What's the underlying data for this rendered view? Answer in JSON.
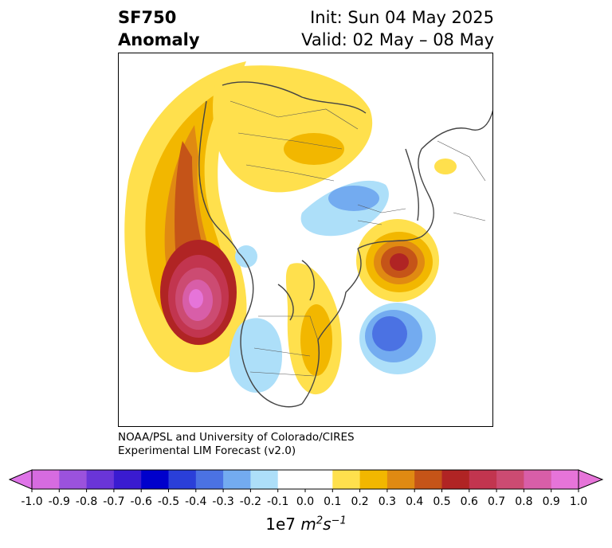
{
  "header": {
    "title_line1": "SF750",
    "title_line2": "Anomaly",
    "init_text": "Init: Sun 04 May 2025",
    "valid_text": "Valid: 02 May – 08 May"
  },
  "credit": {
    "line1": "NOAA/PSL and University of Colorado/CIRES",
    "line2": "Experimental LIM Forecast (v2.0)"
  },
  "colorbar": {
    "ticks": [
      "-1.0",
      "-0.9",
      "-0.8",
      "-0.7",
      "-0.6",
      "-0.5",
      "-0.4",
      "-0.3",
      "-0.2",
      "-0.1",
      "0.0",
      "0.1",
      "0.2",
      "0.3",
      "0.4",
      "0.5",
      "0.6",
      "0.7",
      "0.8",
      "0.9",
      "1.0"
    ],
    "colors": [
      "#d66be0",
      "#9b52dd",
      "#6a35d8",
      "#3a1bd0",
      "#0000cc",
      "#2a3fd9",
      "#4b72e3",
      "#73abf0",
      "#addff9",
      "#ffffff",
      "#ffffff",
      "#ffe04d",
      "#f2b700",
      "#e08a12",
      "#c55418",
      "#b02424",
      "#c2354f",
      "#cc4b72",
      "#d85ea8",
      "#e674d9"
    ],
    "under_color": "#df74e8",
    "over_color": "#e674d9",
    "unit_prefix": "1e7",
    "unit_m": "m",
    "unit_m_exp": "2",
    "unit_s": "s",
    "unit_s_exp": "−1"
  }
}
